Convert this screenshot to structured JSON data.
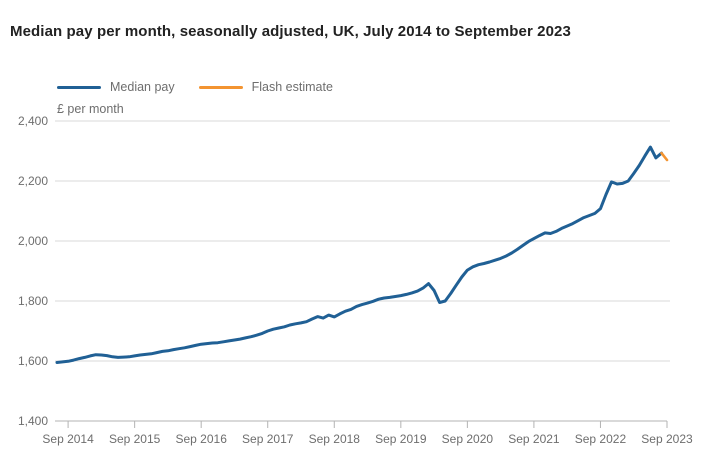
{
  "title": "Median pay per month, seasonally adjusted, UK, July 2014 to September 2023",
  "unit_label": "£ per month",
  "legend": [
    {
      "label": "Median pay",
      "color": "#206095"
    },
    {
      "label": "Flash estimate",
      "color": "#f39431"
    }
  ],
  "colors": {
    "median_pay_line": "#206095",
    "flash_estimate_line": "#f39431",
    "gridline": "#d9d9d9",
    "axis_line": "#b3b3b3",
    "text_gray": "#6e6e6e",
    "title_text": "#222222"
  },
  "chart_data": {
    "type": "line",
    "title": "Median pay per month, seasonally adjusted, UK, July 2014 to September 2023",
    "ylabel": "£ per month",
    "xlabel": "",
    "ylim": [
      1400,
      2400
    ],
    "grid": "horizontal",
    "legend_position": "top-left",
    "start_month": "July 2014",
    "end_month": "September 2023",
    "x_tick_labels": [
      "Sep 2014",
      "Sep 2015",
      "Sep 2016",
      "Sep 2017",
      "Sep 2018",
      "Sep 2019",
      "Sep 2020",
      "Sep 2021",
      "Sep 2022",
      "Sep 2023"
    ],
    "y_ticks": [
      2400,
      2200,
      2000,
      1800,
      1600,
      1400
    ],
    "y_tick_labels": [
      "2,400",
      "2,200",
      "2,000",
      "1,800",
      "1,600",
      "1,400"
    ],
    "series": [
      {
        "name": "Median pay",
        "color": "#206095",
        "start_index": 0,
        "values": [
          1595,
          1597,
          1599,
          1603,
          1608,
          1612,
          1617,
          1621,
          1620,
          1618,
          1614,
          1612,
          1613,
          1614,
          1617,
          1620,
          1622,
          1624,
          1628,
          1632,
          1634,
          1638,
          1641,
          1644,
          1648,
          1652,
          1656,
          1658,
          1660,
          1661,
          1664,
          1667,
          1670,
          1673,
          1677,
          1681,
          1686,
          1692,
          1700,
          1706,
          1710,
          1714,
          1720,
          1724,
          1727,
          1731,
          1740,
          1748,
          1743,
          1753,
          1747,
          1757,
          1766,
          1772,
          1782,
          1788,
          1793,
          1799,
          1806,
          1810,
          1812,
          1815,
          1818,
          1822,
          1827,
          1833,
          1843,
          1858,
          1835,
          1795,
          1800,
          1825,
          1853,
          1880,
          1903,
          1914,
          1921,
          1925,
          1930,
          1936,
          1942,
          1950,
          1960,
          1972,
          1985,
          1998,
          2008,
          2018,
          2027,
          2025,
          2032,
          2042,
          2050,
          2058,
          2068,
          2078,
          2085,
          2092,
          2108,
          2155,
          2197,
          2190,
          2192,
          2200,
          2225,
          2252,
          2283,
          2313,
          2277,
          2293
        ]
      },
      {
        "name": "Flash estimate",
        "color": "#f39431",
        "start_index": 109,
        "values": [
          2293,
          2270
        ]
      }
    ]
  }
}
